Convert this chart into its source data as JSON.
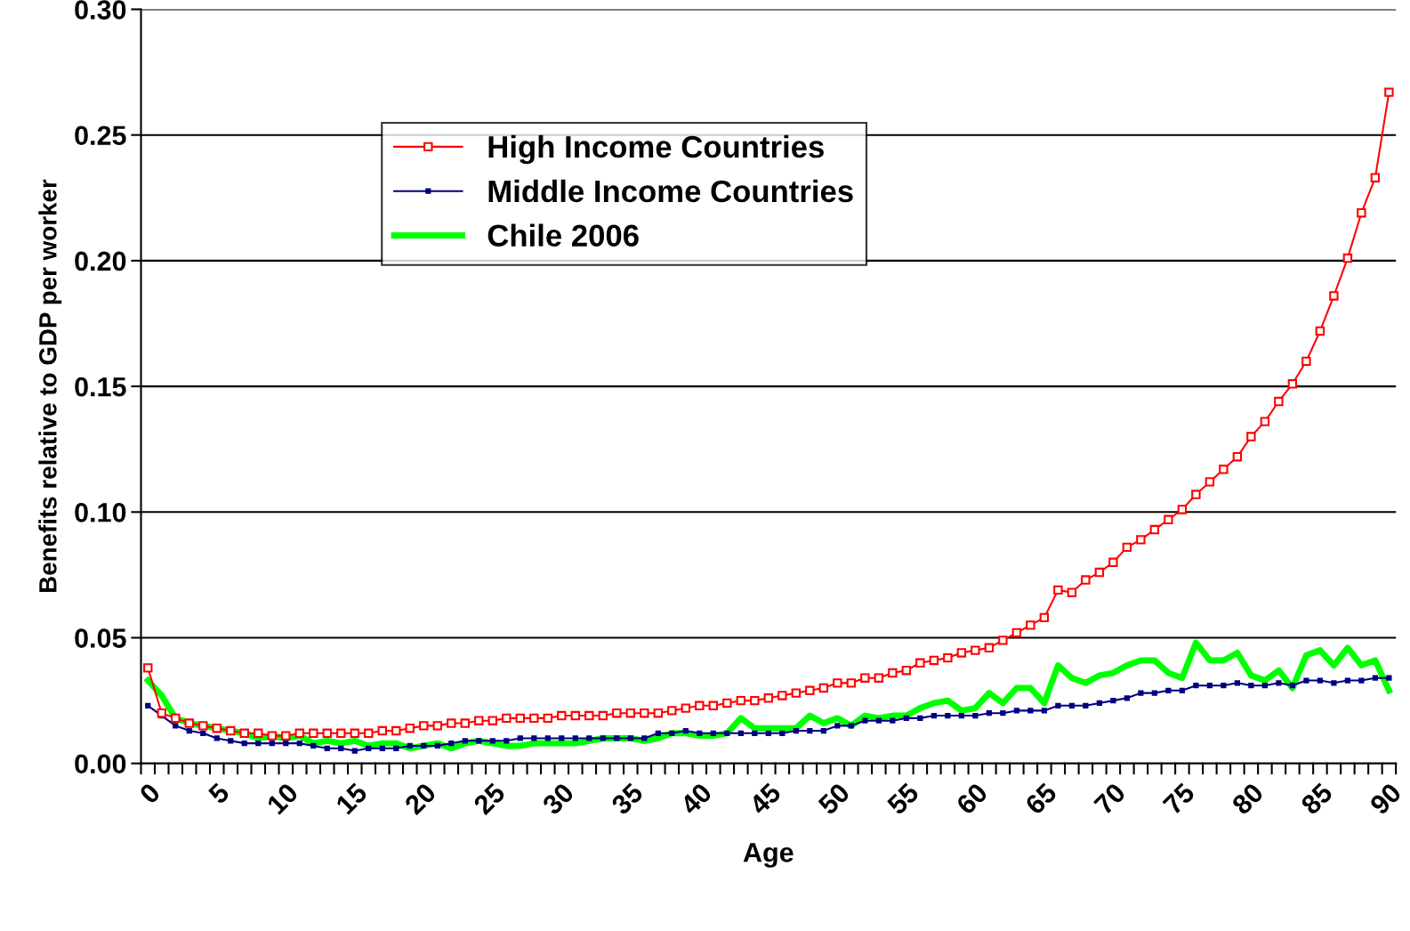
{
  "chart_data": {
    "type": "line",
    "xlabel": "Age",
    "ylabel": "Benefits relative to GDP per worker",
    "categories": [
      "0",
      null,
      null,
      null,
      null,
      "5",
      null,
      null,
      null,
      null,
      "10",
      null,
      null,
      null,
      null,
      "15",
      null,
      null,
      null,
      null,
      "20",
      null,
      null,
      null,
      null,
      "25",
      null,
      null,
      null,
      null,
      "30",
      null,
      null,
      null,
      null,
      "35",
      null,
      null,
      null,
      null,
      "40",
      null,
      null,
      null,
      null,
      "45",
      null,
      null,
      null,
      null,
      "50",
      null,
      null,
      null,
      null,
      "55",
      null,
      null,
      null,
      null,
      "60",
      null,
      null,
      null,
      null,
      "65",
      null,
      null,
      null,
      null,
      "70",
      null,
      null,
      null,
      null,
      "75",
      null,
      null,
      null,
      null,
      "80",
      null,
      null,
      null,
      null,
      "85",
      null,
      null,
      null,
      null,
      "90"
    ],
    "ylim": [
      0,
      0.3
    ],
    "yticks": [
      {
        "value": 0,
        "label": "0.00"
      },
      {
        "value": 0.05,
        "label": "0.05"
      },
      {
        "value": 0.1,
        "label": "0.10"
      },
      {
        "value": 0.15,
        "label": "0.15"
      },
      {
        "value": 0.2,
        "label": "0.20"
      },
      {
        "value": 0.25,
        "label": "0.25"
      },
      {
        "value": 0.3,
        "label": "0.30"
      }
    ],
    "grid": "y",
    "legend": "top",
    "series": [
      {
        "name": "High Income Countries",
        "color": "#ff0000",
        "marker": "square",
        "values": [
          0.038,
          0.02,
          0.018,
          0.016,
          0.015,
          0.014,
          0.013,
          0.012,
          0.012,
          0.011,
          0.011,
          0.012,
          0.012,
          0.012,
          0.012,
          0.012,
          0.012,
          0.013,
          0.013,
          0.014,
          0.015,
          0.015,
          0.016,
          0.016,
          0.017,
          0.017,
          0.018,
          0.018,
          0.018,
          0.018,
          0.019,
          0.019,
          0.019,
          0.019,
          0.02,
          0.02,
          0.02,
          0.02,
          0.021,
          0.022,
          0.023,
          0.023,
          0.024,
          0.025,
          0.025,
          0.026,
          0.027,
          0.028,
          0.029,
          0.03,
          0.032,
          0.032,
          0.034,
          0.034,
          0.036,
          0.037,
          0.04,
          0.041,
          0.042,
          0.044,
          0.045,
          0.046,
          0.049,
          0.052,
          0.055,
          0.058,
          0.069,
          0.068,
          0.073,
          0.076,
          0.08,
          0.086,
          0.089,
          0.093,
          0.097,
          0.101,
          0.107,
          0.112,
          0.117,
          0.122,
          0.13,
          0.136,
          0.144,
          0.151,
          0.16,
          0.172,
          0.186,
          0.201,
          0.219,
          0.233,
          0.267
        ]
      },
      {
        "name": "Middle Income Countries",
        "color": "#000080",
        "marker": "square",
        "values": [
          0.023,
          0.019,
          0.015,
          0.013,
          0.012,
          0.01,
          0.009,
          0.008,
          0.008,
          0.008,
          0.008,
          0.008,
          0.007,
          0.006,
          0.006,
          0.005,
          0.006,
          0.006,
          0.006,
          0.007,
          0.007,
          0.007,
          0.008,
          0.009,
          0.009,
          0.009,
          0.009,
          0.01,
          0.01,
          0.01,
          0.01,
          0.01,
          0.01,
          0.01,
          0.01,
          0.01,
          0.01,
          0.012,
          0.012,
          0.013,
          0.012,
          0.012,
          0.012,
          0.012,
          0.012,
          0.012,
          0.012,
          0.013,
          0.013,
          0.013,
          0.015,
          0.015,
          0.017,
          0.017,
          0.017,
          0.018,
          0.018,
          0.019,
          0.019,
          0.019,
          0.019,
          0.02,
          0.02,
          0.021,
          0.021,
          0.021,
          0.023,
          0.023,
          0.023,
          0.024,
          0.025,
          0.026,
          0.028,
          0.028,
          0.029,
          0.029,
          0.031,
          0.031,
          0.031,
          0.032,
          0.031,
          0.031,
          0.032,
          0.031,
          0.033,
          0.033,
          0.032,
          0.033,
          0.033,
          0.034,
          0.034
        ]
      },
      {
        "name": "Chile 2006",
        "color": "#00ff00",
        "marker": "none",
        "values": [
          0.033,
          0.027,
          0.018,
          0.016,
          0.015,
          0.014,
          0.013,
          0.012,
          0.01,
          0.011,
          0.01,
          0.011,
          0.008,
          0.009,
          0.008,
          0.009,
          0.007,
          0.008,
          0.008,
          0.006,
          0.007,
          0.008,
          0.006,
          0.008,
          0.009,
          0.008,
          0.007,
          0.007,
          0.008,
          0.008,
          0.008,
          0.008,
          0.009,
          0.01,
          0.01,
          0.01,
          0.009,
          0.01,
          0.012,
          0.012,
          0.011,
          0.011,
          0.012,
          0.018,
          0.014,
          0.014,
          0.014,
          0.014,
          0.019,
          0.016,
          0.018,
          0.015,
          0.019,
          0.018,
          0.019,
          0.019,
          0.022,
          0.024,
          0.025,
          0.021,
          0.022,
          0.028,
          0.024,
          0.03,
          0.03,
          0.024,
          0.039,
          0.034,
          0.032,
          0.035,
          0.036,
          0.039,
          0.041,
          0.041,
          0.036,
          0.034,
          0.048,
          0.041,
          0.041,
          0.044,
          0.035,
          0.033,
          0.037,
          0.03,
          0.043,
          0.045,
          0.039,
          0.046,
          0.039,
          0.041,
          0.029
        ]
      }
    ]
  }
}
